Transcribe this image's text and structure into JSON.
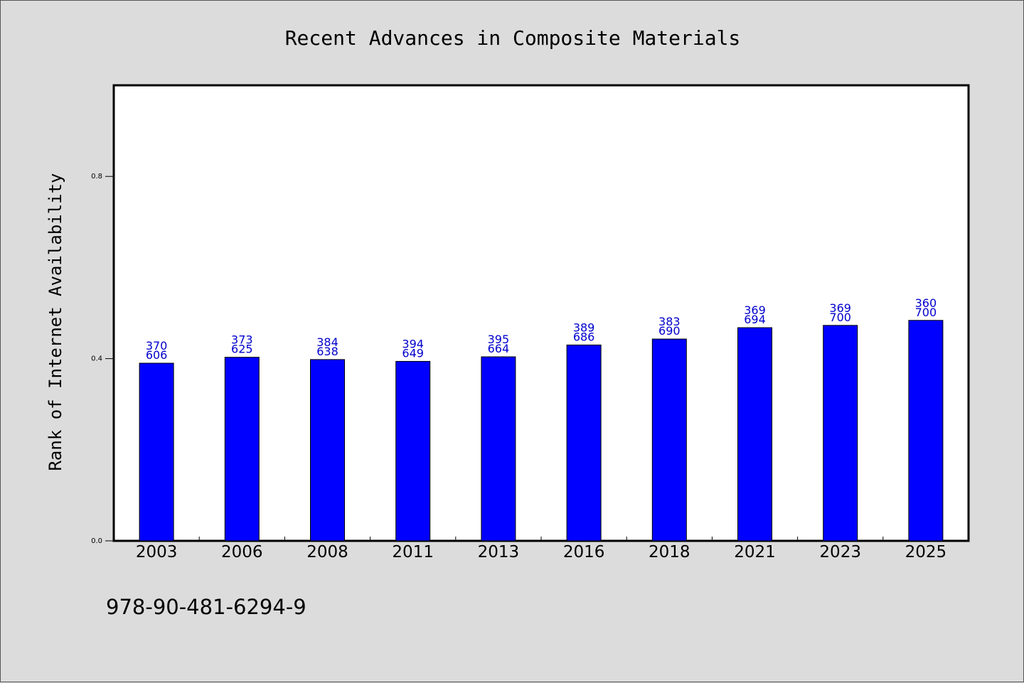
{
  "chart_data": {
    "type": "bar",
    "title": "Recent Advances in Composite Materials",
    "xlabel": "",
    "ylabel": "Rank of Internet Availability",
    "categories": [
      "2003",
      "2006",
      "2008",
      "2011",
      "2013",
      "2016",
      "2018",
      "2021",
      "2023",
      "2025"
    ],
    "values": [
      0.39,
      0.403,
      0.398,
      0.394,
      0.404,
      0.43,
      0.443,
      0.468,
      0.473,
      0.484
    ],
    "bar_labels": [
      [
        "370",
        "606"
      ],
      [
        "373",
        "625"
      ],
      [
        "384",
        "638"
      ],
      [
        "394",
        "649"
      ],
      [
        "395",
        "664"
      ],
      [
        "389",
        "686"
      ],
      [
        "383",
        "690"
      ],
      [
        "369",
        "694"
      ],
      [
        "369",
        "700"
      ],
      [
        "360",
        "700"
      ]
    ],
    "ylim": [
      0,
      1.0
    ],
    "yticks": [
      "0.0",
      "0.4",
      "0.8"
    ],
    "grid": false,
    "legend": "none"
  },
  "footer": {
    "isbn": "978-90-481-6294-9"
  },
  "colors": {
    "background": "#dcdcdc",
    "plot_background": "#ffffff",
    "bar_fill": "#0000ff",
    "bar_label": "#0000cc"
  }
}
